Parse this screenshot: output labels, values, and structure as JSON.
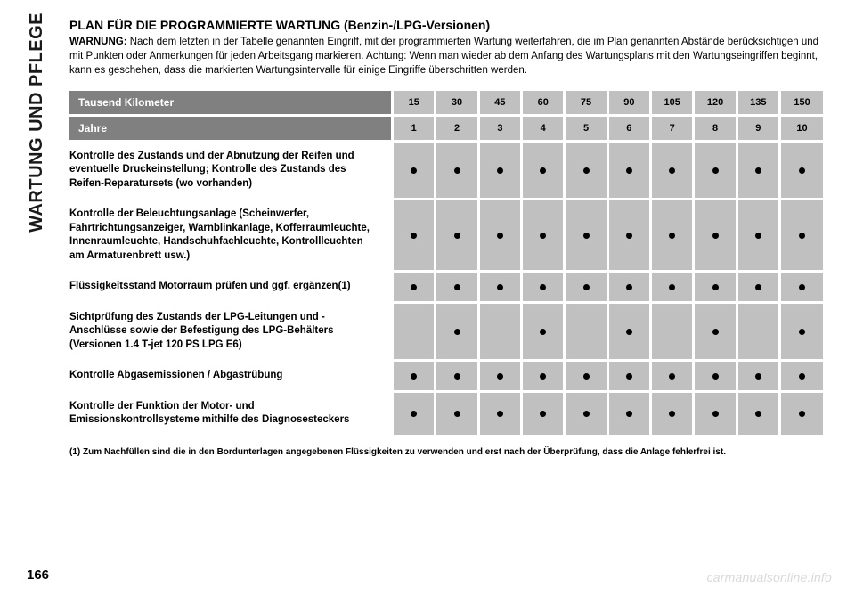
{
  "sidebar_label": "WARTUNG UND PFLEGE",
  "headline_main": "PLAN FÜR DIE PROGRAMMIERTE WARTUNG",
  "headline_paren": "(Benzin-/LPG-Versionen)",
  "warning_lead": "WARNUNG:",
  "warning_text": "Nach dem letzten in der Tabelle genannten Eingriff, mit der programmierten Wartung weiterfahren, die im Plan genannten Abstände berücksichtigen und mit Punkten oder Anmerkungen für jeden Arbeitsgang markieren. Achtung: Wenn man wieder ab dem Anfang des Wartungsplans mit den Wartungseingriffen beginnt, kann es geschehen, dass die markierten Wartungsintervalle für einige Eingriffe überschritten werden.",
  "header_rows": [
    {
      "label": "Tausend Kilometer",
      "values": [
        "15",
        "30",
        "45",
        "60",
        "75",
        "90",
        "105",
        "120",
        "135",
        "150"
      ]
    },
    {
      "label": "Jahre",
      "values": [
        "1",
        "2",
        "3",
        "4",
        "5",
        "6",
        "7",
        "8",
        "9",
        "10"
      ]
    }
  ],
  "rows": [
    {
      "label": "Kontrolle des Zustands und der Abnutzung der Reifen und eventuelle Druckeinstellung; Kontrolle des Zustands des Reifen-Reparatursets (wo vorhanden)",
      "dots": [
        1,
        1,
        1,
        1,
        1,
        1,
        1,
        1,
        1,
        1
      ]
    },
    {
      "label": "Kontrolle der Beleuchtungsanlage (Scheinwerfer, Fahrtrichtungsanzeiger, Warnblinkanlage, Kofferraumleuchte, Innenraumleuchte, Handschuhfachleuchte, Kontrollleuchten am Armaturenbrett usw.)",
      "dots": [
        1,
        1,
        1,
        1,
        1,
        1,
        1,
        1,
        1,
        1
      ]
    },
    {
      "label": "Flüssigkeitsstand Motorraum prüfen und ggf. ergänzen(1)",
      "dots": [
        1,
        1,
        1,
        1,
        1,
        1,
        1,
        1,
        1,
        1
      ]
    },
    {
      "label": "Sichtprüfung des Zustands der LPG-Leitungen und -Anschlüsse sowie der Befestigung des LPG-Behälters (Versionen 1.4 T-jet 120 PS LPG E6)",
      "dots": [
        0,
        1,
        0,
        1,
        0,
        1,
        0,
        1,
        0,
        1
      ]
    },
    {
      "label": "Kontrolle Abgasemissionen / Abgastrübung",
      "dots": [
        1,
        1,
        1,
        1,
        1,
        1,
        1,
        1,
        1,
        1
      ]
    },
    {
      "label": "Kontrolle der Funktion der Motor- und Emissionskontrollsysteme mithilfe des Diagnosesteckers",
      "dots": [
        1,
        1,
        1,
        1,
        1,
        1,
        1,
        1,
        1,
        1
      ]
    }
  ],
  "footnote": "(1) Zum Nachfüllen sind die in den Bordunterlagen angegebenen Flüssigkeiten zu verwenden und erst nach der Überprüfung, dass die Anlage fehlerfrei ist.",
  "page_number": "166",
  "watermark": "carmanualsonline.info",
  "colors": {
    "header_bg": "#808080",
    "header_fg": "#ffffff",
    "cell_bg": "#c0c0c0",
    "grid_gap": "#ffffff",
    "text": "#000000",
    "watermark": "#d9d9d9"
  }
}
